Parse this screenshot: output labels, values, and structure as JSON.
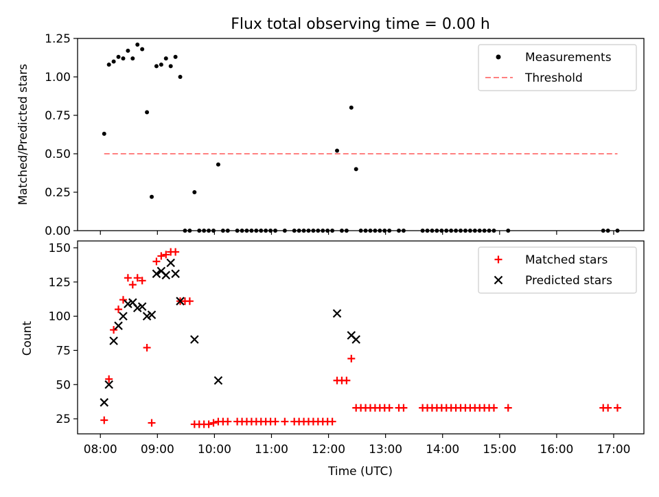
{
  "title": "Flux total observing time = 0.00 h",
  "xlabel": "Time (UTC)",
  "xticks": [
    "08:00",
    "09:00",
    "10:00",
    "11:00",
    "12:00",
    "13:00",
    "14:00",
    "15:00",
    "16:00",
    "17:00"
  ],
  "xlim_hours": [
    7.6,
    17.53
  ],
  "chart_data": [
    {
      "type": "scatter",
      "ylabel": "Matched/Predicted stars",
      "ylim": [
        0,
        1.25
      ],
      "yticks": [
        "0.00",
        "0.25",
        "0.50",
        "0.75",
        "1.00",
        "1.25"
      ],
      "legend_position": "top-right",
      "series": [
        {
          "name": "Measurements",
          "kind": "dot",
          "color": "#000000",
          "points": [
            [
              "08:04",
              0.63
            ],
            [
              "08:09",
              1.08
            ],
            [
              "08:14",
              1.1
            ],
            [
              "08:19",
              1.13
            ],
            [
              "08:24",
              1.12
            ],
            [
              "08:29",
              1.17
            ],
            [
              "08:34",
              1.12
            ],
            [
              "08:39",
              1.21
            ],
            [
              "08:44",
              1.18
            ],
            [
              "08:49",
              0.77
            ],
            [
              "08:54",
              0.22
            ],
            [
              "08:59",
              1.07
            ],
            [
              "09:04",
              1.08
            ],
            [
              "09:09",
              1.12
            ],
            [
              "09:14",
              1.07
            ],
            [
              "09:19",
              1.13
            ],
            [
              "09:24",
              1.0
            ],
            [
              "09:29",
              0.0
            ],
            [
              "09:34",
              0.0
            ],
            [
              "09:39",
              0.25
            ],
            [
              "09:44",
              0.0
            ],
            [
              "09:49",
              0.0
            ],
            [
              "09:54",
              0.0
            ],
            [
              "09:59",
              0.0
            ],
            [
              "10:04",
              0.43
            ],
            [
              "10:09",
              0.0
            ],
            [
              "10:14",
              0.0
            ],
            [
              "10:24",
              0.0
            ],
            [
              "10:29",
              0.0
            ],
            [
              "10:34",
              0.0
            ],
            [
              "10:39",
              0.0
            ],
            [
              "10:44",
              0.0
            ],
            [
              "10:49",
              0.0
            ],
            [
              "10:54",
              0.0
            ],
            [
              "10:59",
              0.0
            ],
            [
              "11:04",
              0.0
            ],
            [
              "11:14",
              0.0
            ],
            [
              "11:24",
              0.0
            ],
            [
              "11:29",
              0.0
            ],
            [
              "11:34",
              0.0
            ],
            [
              "11:39",
              0.0
            ],
            [
              "11:44",
              0.0
            ],
            [
              "11:49",
              0.0
            ],
            [
              "11:54",
              0.0
            ],
            [
              "11:59",
              0.0
            ],
            [
              "12:04",
              0.0
            ],
            [
              "12:09",
              0.52
            ],
            [
              "12:14",
              0.0
            ],
            [
              "12:19",
              0.0
            ],
            [
              "12:24",
              0.8
            ],
            [
              "12:29",
              0.4
            ],
            [
              "12:34",
              0.0
            ],
            [
              "12:39",
              0.0
            ],
            [
              "12:44",
              0.0
            ],
            [
              "12:49",
              0.0
            ],
            [
              "12:54",
              0.0
            ],
            [
              "12:59",
              0.0
            ],
            [
              "13:04",
              0.0
            ],
            [
              "13:14",
              0.0
            ],
            [
              "13:19",
              0.0
            ],
            [
              "13:39",
              0.0
            ],
            [
              "13:44",
              0.0
            ],
            [
              "13:49",
              0.0
            ],
            [
              "13:54",
              0.0
            ],
            [
              "13:59",
              0.0
            ],
            [
              "14:04",
              0.0
            ],
            [
              "14:09",
              0.0
            ],
            [
              "14:14",
              0.0
            ],
            [
              "14:19",
              0.0
            ],
            [
              "14:24",
              0.0
            ],
            [
              "14:29",
              0.0
            ],
            [
              "14:34",
              0.0
            ],
            [
              "14:39",
              0.0
            ],
            [
              "14:44",
              0.0
            ],
            [
              "14:49",
              0.0
            ],
            [
              "14:54",
              0.0
            ],
            [
              "15:09",
              0.0
            ],
            [
              "16:49",
              0.0
            ],
            [
              "16:54",
              0.0
            ],
            [
              "17:04",
              0.0
            ]
          ]
        },
        {
          "name": "Threshold",
          "kind": "dashed-line",
          "color": "#ff8080",
          "points": [
            [
              "08:04",
              0.5
            ],
            [
              "17:04",
              0.5
            ]
          ]
        }
      ]
    },
    {
      "type": "scatter",
      "ylabel": "Count",
      "ylim": [
        14,
        155
      ],
      "yticks": [
        "25",
        "50",
        "75",
        "100",
        "125",
        "150"
      ],
      "legend_position": "top-right",
      "series": [
        {
          "name": "Matched stars",
          "kind": "plus",
          "color": "#ff0000",
          "points": [
            [
              "08:04",
              24
            ],
            [
              "08:09",
              54
            ],
            [
              "08:14",
              90
            ],
            [
              "08:19",
              105
            ],
            [
              "08:24",
              112
            ],
            [
              "08:29",
              128
            ],
            [
              "08:34",
              123
            ],
            [
              "08:39",
              128
            ],
            [
              "08:44",
              126
            ],
            [
              "08:49",
              77
            ],
            [
              "08:54",
              22
            ],
            [
              "08:59",
              140
            ],
            [
              "09:04",
              144
            ],
            [
              "09:09",
              145
            ],
            [
              "09:14",
              147
            ],
            [
              "09:19",
              147
            ],
            [
              "09:24",
              111
            ],
            [
              "09:29",
              111
            ],
            [
              "09:34",
              111
            ],
            [
              "09:39",
              21
            ],
            [
              "09:44",
              21
            ],
            [
              "09:49",
              21
            ],
            [
              "09:54",
              21
            ],
            [
              "09:59",
              22
            ],
            [
              "10:04",
              23
            ],
            [
              "10:09",
              23
            ],
            [
              "10:14",
              23
            ],
            [
              "10:24",
              23
            ],
            [
              "10:29",
              23
            ],
            [
              "10:34",
              23
            ],
            [
              "10:39",
              23
            ],
            [
              "10:44",
              23
            ],
            [
              "10:49",
              23
            ],
            [
              "10:54",
              23
            ],
            [
              "10:59",
              23
            ],
            [
              "11:04",
              23
            ],
            [
              "11:14",
              23
            ],
            [
              "11:24",
              23
            ],
            [
              "11:29",
              23
            ],
            [
              "11:34",
              23
            ],
            [
              "11:39",
              23
            ],
            [
              "11:44",
              23
            ],
            [
              "11:49",
              23
            ],
            [
              "11:54",
              23
            ],
            [
              "11:59",
              23
            ],
            [
              "12:04",
              23
            ],
            [
              "12:09",
              53
            ],
            [
              "12:14",
              53
            ],
            [
              "12:19",
              53
            ],
            [
              "12:24",
              69
            ],
            [
              "12:29",
              33
            ],
            [
              "12:34",
              33
            ],
            [
              "12:39",
              33
            ],
            [
              "12:44",
              33
            ],
            [
              "12:49",
              33
            ],
            [
              "12:54",
              33
            ],
            [
              "12:59",
              33
            ],
            [
              "13:04",
              33
            ],
            [
              "13:14",
              33
            ],
            [
              "13:19",
              33
            ],
            [
              "13:39",
              33
            ],
            [
              "13:44",
              33
            ],
            [
              "13:49",
              33
            ],
            [
              "13:54",
              33
            ],
            [
              "13:59",
              33
            ],
            [
              "14:04",
              33
            ],
            [
              "14:09",
              33
            ],
            [
              "14:14",
              33
            ],
            [
              "14:19",
              33
            ],
            [
              "14:24",
              33
            ],
            [
              "14:29",
              33
            ],
            [
              "14:34",
              33
            ],
            [
              "14:39",
              33
            ],
            [
              "14:44",
              33
            ],
            [
              "14:49",
              33
            ],
            [
              "14:54",
              33
            ],
            [
              "15:09",
              33
            ],
            [
              "16:49",
              33
            ],
            [
              "16:54",
              33
            ],
            [
              "17:04",
              33
            ]
          ]
        },
        {
          "name": "Predicted stars",
          "kind": "x",
          "color": "#000000",
          "points": [
            [
              "08:04",
              37
            ],
            [
              "08:09",
              50
            ],
            [
              "08:14",
              82
            ],
            [
              "08:19",
              93
            ],
            [
              "08:24",
              100
            ],
            [
              "08:29",
              109
            ],
            [
              "08:34",
              110
            ],
            [
              "08:39",
              106
            ],
            [
              "08:44",
              107
            ],
            [
              "08:49",
              100
            ],
            [
              "08:54",
              101
            ],
            [
              "08:59",
              131
            ],
            [
              "09:04",
              133
            ],
            [
              "09:09",
              130
            ],
            [
              "09:14",
              139
            ],
            [
              "09:19",
              131
            ],
            [
              "09:24",
              111
            ],
            [
              "09:39",
              83
            ],
            [
              "10:04",
              53
            ],
            [
              "12:09",
              102
            ],
            [
              "12:24",
              86
            ],
            [
              "12:29",
              83
            ]
          ]
        }
      ]
    }
  ]
}
